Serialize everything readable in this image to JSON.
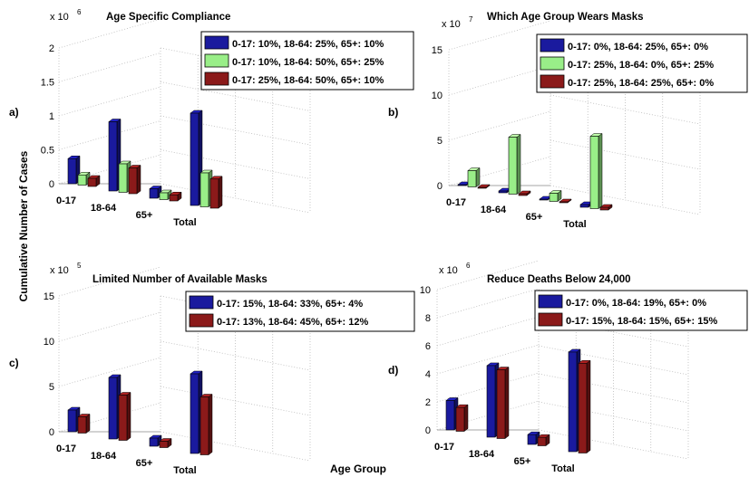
{
  "figure": {
    "ylabel": "Cumulative Number of Cases",
    "xlabel": "Age Group"
  },
  "chart_data": [
    {
      "panel": "a)",
      "type": "bar",
      "title": "Age Specific Compliance",
      "multiplier": "x 10",
      "exponent": "6",
      "ylim": [
        0,
        2
      ],
      "yticks": [
        0,
        0.5,
        1,
        1.5,
        2
      ],
      "ytick_labels": [
        "0",
        "0.5",
        "1",
        "1.5",
        "2"
      ],
      "categories": [
        "0-17",
        "18-64",
        "65+",
        "Total"
      ],
      "series": [
        {
          "name": "0-17: 10%, 18-64: 25%, 65+: 10%",
          "color": "#1a1a9e",
          "values": [
            0.37,
            1.02,
            0.14,
            1.36
          ]
        },
        {
          "name": "0-17: 10%, 18-64: 50%, 65+: 25%",
          "color": "#99ee88",
          "values": [
            0.15,
            0.42,
            0.1,
            0.5
          ]
        },
        {
          "name": "0-17: 25%, 18-64: 50%, 65+: 10%",
          "color": "#8b1a1a",
          "values": [
            0.12,
            0.38,
            0.09,
            0.43
          ]
        }
      ],
      "legend": "top-right",
      "grid": true
    },
    {
      "panel": "b)",
      "type": "bar",
      "title": "Which Age Group Wears Masks",
      "multiplier": "x 10",
      "exponent": "7",
      "ylim": [
        0,
        15
      ],
      "yticks": [
        0,
        5,
        10,
        15
      ],
      "ytick_labels": [
        "0",
        "5",
        "10",
        "15"
      ],
      "categories": [
        "0-17",
        "18-64",
        "65+",
        "Total"
      ],
      "series": [
        {
          "name": "0-17: 0%, 18-64: 25%, 65+: 0%",
          "color": "#1a1a9e",
          "values": [
            0.1,
            0.2,
            0.1,
            0.3
          ]
        },
        {
          "name": "0-17: 25%, 18-64: 0%, 65+: 25%",
          "color": "#99ee88",
          "values": [
            1.8,
            6.3,
            0.9,
            8.0
          ]
        },
        {
          "name": "0-17: 25%, 18-64: 25%, 65+: 0%",
          "color": "#8b1a1a",
          "values": [
            0.1,
            0.2,
            0.1,
            0.3
          ]
        }
      ],
      "legend": "top-right",
      "grid": true
    },
    {
      "panel": "c)",
      "type": "bar",
      "title": "Limited Number of Available Masks",
      "multiplier": "x 10",
      "exponent": "5",
      "ylim": [
        0,
        15
      ],
      "yticks": [
        0,
        5,
        10,
        15
      ],
      "ytick_labels": [
        "0",
        "5",
        "10",
        "15"
      ],
      "categories": [
        "0-17",
        "18-64",
        "65+",
        "Total"
      ],
      "series": [
        {
          "name": "0-17: 15%, 18-64: 33%, 65+: 4%",
          "color": "#1a1a9e",
          "values": [
            2.4,
            6.8,
            0.9,
            8.8
          ]
        },
        {
          "name": "0-17: 13%, 18-64: 45%, 65+: 12%",
          "color": "#8b1a1a",
          "values": [
            1.8,
            5.0,
            0.7,
            6.4
          ]
        }
      ],
      "legend": "top-right",
      "grid": true
    },
    {
      "panel": "d)",
      "type": "bar",
      "title": "Reduce Deaths Below 24,000",
      "multiplier": "x 10",
      "exponent": "6",
      "ylim": [
        0,
        10
      ],
      "yticks": [
        0,
        2,
        4,
        6,
        8,
        10
      ],
      "ytick_labels": [
        "0",
        "2",
        "4",
        "6",
        "8",
        "10"
      ],
      "categories": [
        "0-17",
        "18-64",
        "65+",
        "Total"
      ],
      "series": [
        {
          "name": "0-17: 0%, 18-64: 19%, 65+: 0%",
          "color": "#1a1a9e",
          "values": [
            2.1,
            5.1,
            0.7,
            7.1
          ]
        },
        {
          "name": "0-17: 15%, 18-64: 15%, 65+: 15%",
          "color": "#8b1a1a",
          "values": [
            1.7,
            4.9,
            0.6,
            6.4
          ]
        }
      ],
      "legend": "top-right",
      "grid": true
    }
  ]
}
